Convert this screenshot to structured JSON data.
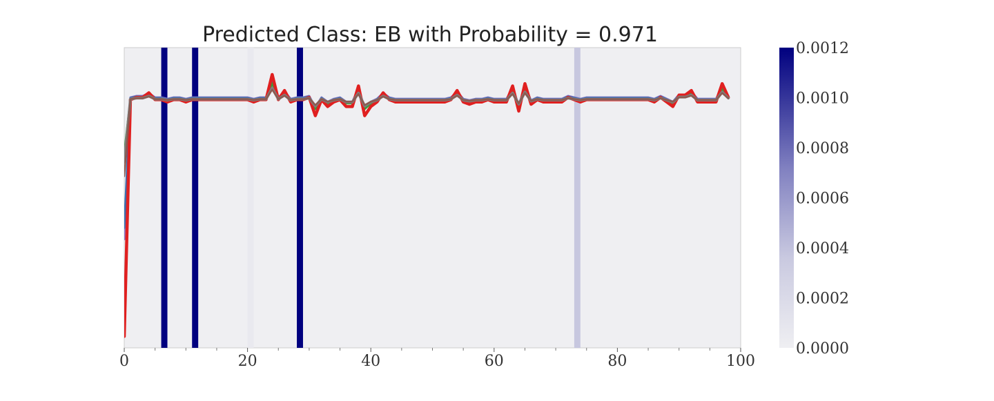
{
  "chart_data": {
    "type": "line",
    "title": "Predicted Class: EB with Probability = 0.971",
    "xlabel": "",
    "ylabel": "",
    "xlim": [
      0,
      100
    ],
    "ylim": [
      0,
      1.05
    ],
    "grid": false,
    "x_ticks": [
      "0",
      "20",
      "40",
      "60",
      "80",
      "100"
    ],
    "x_minor_ticks": [
      5,
      10,
      15,
      25,
      30,
      35,
      45,
      50,
      55,
      65,
      70,
      75,
      85,
      90,
      95
    ],
    "background_color": "#efeff2",
    "highlight_bands": [
      {
        "x": 6.5,
        "importance": 0.0012
      },
      {
        "x": 11.5,
        "importance": 0.0012
      },
      {
        "x": 28.5,
        "importance": 0.0012
      },
      {
        "x": 73.5,
        "importance": 0.0002
      },
      {
        "x": 20.5,
        "importance": 3e-05
      }
    ],
    "colorbar": {
      "min": 0.0,
      "max": 0.0012,
      "tick_labels": [
        "0.0000",
        "0.0002",
        "0.0004",
        "0.0006",
        "0.0008",
        "0.0010",
        "0.0012"
      ],
      "color_low": "#efeff2",
      "color_high": "#00007f"
    },
    "series": [
      {
        "color": "#8a78c8",
        "width": 3,
        "offset": 0.006,
        "start": 0.38
      },
      {
        "color": "#3a6fb0",
        "width": 3,
        "offset": 0.004,
        "start": 0.42
      },
      {
        "color": "#3a9a3a",
        "width": 3,
        "offset": 0.0,
        "start": 0.68
      },
      {
        "color": "#e02020",
        "width": 4.5,
        "offset": -0.002,
        "start": 0.04,
        "amp": 1.6
      },
      {
        "color": "#7f7f7f",
        "width": 4,
        "offset": 0.0,
        "start": 0.65,
        "amp": 0.7
      },
      {
        "color": "#8c5a50",
        "width": 2.5,
        "offset": 0.0,
        "start": 0.6,
        "amp": 0.6
      }
    ],
    "base_values": [
      0.6,
      0.87,
      0.875,
      0.875,
      0.885,
      0.87,
      0.87,
      0.865,
      0.87,
      0.87,
      0.865,
      0.87,
      0.87,
      0.87,
      0.87,
      0.87,
      0.87,
      0.87,
      0.87,
      0.87,
      0.87,
      0.865,
      0.87,
      0.87,
      0.925,
      0.87,
      0.89,
      0.865,
      0.87,
      0.87,
      0.875,
      0.835,
      0.87,
      0.855,
      0.865,
      0.87,
      0.855,
      0.855,
      0.9,
      0.835,
      0.855,
      0.865,
      0.885,
      0.87,
      0.865,
      0.865,
      0.865,
      0.865,
      0.865,
      0.865,
      0.865,
      0.865,
      0.865,
      0.87,
      0.89,
      0.865,
      0.86,
      0.865,
      0.865,
      0.87,
      0.865,
      0.865,
      0.865,
      0.9,
      0.845,
      0.905,
      0.86,
      0.87,
      0.865,
      0.865,
      0.865,
      0.865,
      0.875,
      0.87,
      0.865,
      0.87,
      0.87,
      0.87,
      0.87,
      0.87,
      0.87,
      0.87,
      0.87,
      0.87,
      0.87,
      0.87,
      0.865,
      0.875,
      0.865,
      0.855,
      0.88,
      0.88,
      0.89,
      0.865,
      0.865,
      0.865,
      0.865,
      0.905,
      0.875
    ]
  }
}
